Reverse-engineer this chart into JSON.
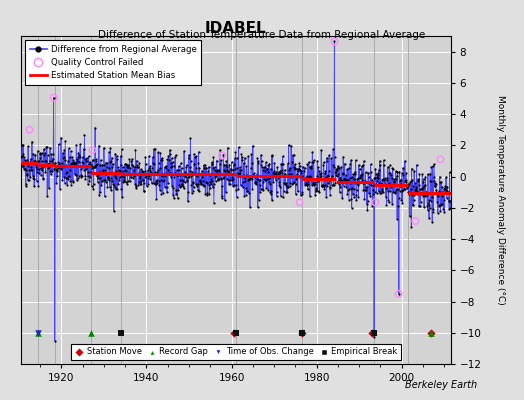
{
  "title": "IDABEL",
  "subtitle": "Difference of Station Temperature Data from Regional Average",
  "ylabel_right": "Monthly Temperature Anomaly Difference (°C)",
  "xlim": [
    1910.5,
    2011.5
  ],
  "ylim": [
    -12,
    9
  ],
  "yticks": [
    -12,
    -10,
    -8,
    -6,
    -4,
    -2,
    0,
    2,
    4,
    6,
    8
  ],
  "xticks": [
    1920,
    1940,
    1960,
    1980,
    2000
  ],
  "bg_color": "#e0e0e0",
  "plot_bg_color": "#d3d3d3",
  "grid_color": "#ffffff",
  "data_line_color": "#4444ff",
  "data_dot_color": "#000000",
  "bias_line_color": "#ff0000",
  "qc_fail_color": "#ff88ff",
  "station_move_color": "#cc0000",
  "record_gap_color": "#008800",
  "obs_change_color": "#2222cc",
  "empirical_break_color": "#111111",
  "berkeley_earth_label": "Berkeley Earth",
  "segments": [
    {
      "x_start": 1910.5,
      "x_end": 1914.5,
      "bias": 0.85
    },
    {
      "x_start": 1914.5,
      "x_end": 1918.5,
      "bias": 0.75
    },
    {
      "x_start": 1918.5,
      "x_end": 1927.0,
      "bias": 0.65
    },
    {
      "x_start": 1927.0,
      "x_end": 1934.0,
      "bias": 0.25
    },
    {
      "x_start": 1934.0,
      "x_end": 1961.0,
      "bias": 0.15
    },
    {
      "x_start": 1961.0,
      "x_end": 1976.5,
      "bias": 0.05
    },
    {
      "x_start": 1976.5,
      "x_end": 1984.5,
      "bias": -0.15
    },
    {
      "x_start": 1984.5,
      "x_end": 1993.5,
      "bias": -0.35
    },
    {
      "x_start": 1993.5,
      "x_end": 2001.5,
      "bias": -0.55
    },
    {
      "x_start": 2001.5,
      "x_end": 2011.5,
      "bias": -1.05
    }
  ],
  "segment_dividers": [
    1914.5,
    1918.5,
    1927.0,
    1934.0,
    1961.0,
    1976.5,
    1993.5,
    2001.5
  ],
  "station_moves": [
    1960.5,
    1976.5,
    1993.0,
    2007.0
  ],
  "record_gaps": [
    1914.5,
    1927.0,
    2007.0
  ],
  "obs_changes": [
    1914.5
  ],
  "empirical_breaks": [
    1934.0,
    1961.0,
    1976.5,
    1993.5
  ],
  "qc_fail_points": [
    [
      1912.5,
      3.0
    ],
    [
      1918.2,
      5.05
    ],
    [
      1927.3,
      1.7
    ],
    [
      1957.8,
      1.35
    ],
    [
      1976.0,
      -1.65
    ],
    [
      1984.2,
      8.65
    ],
    [
      1993.8,
      -1.65
    ],
    [
      1999.3,
      -7.5
    ],
    [
      2003.2,
      -2.85
    ],
    [
      2009.1,
      1.1
    ]
  ],
  "spike_points": [
    [
      1918.2,
      5.05
    ],
    [
      1918.4,
      -10.5
    ],
    [
      1984.2,
      8.65
    ],
    [
      1993.5,
      -10.3
    ],
    [
      1999.3,
      -7.5
    ]
  ],
  "noise_scale": 0.75,
  "random_seed": 42
}
